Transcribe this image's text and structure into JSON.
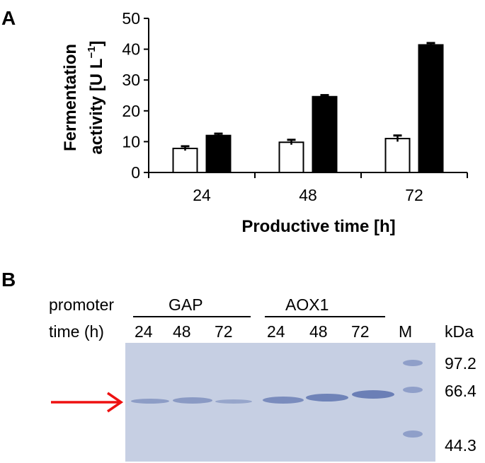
{
  "panel_a": {
    "label": "A"
  },
  "chart_data": {
    "type": "bar",
    "categories": [
      "24",
      "48",
      "72"
    ],
    "series": [
      {
        "fill": "#ffffff",
        "values": [
          7.8,
          9.8,
          11.0
        ],
        "errors": [
          0.7,
          0.8,
          1.0
        ]
      },
      {
        "fill": "#000000",
        "values": [
          12.0,
          24.6,
          41.4
        ],
        "errors": [
          0.6,
          0.5,
          0.6
        ]
      }
    ],
    "xlabel": "Productive time [h]",
    "ylabel_line1": "Fermentation",
    "ylabel_line2": "activity [U L",
    "ylabel_sup": "−1",
    "ylabel_end": "]",
    "ylim": [
      0,
      50
    ],
    "yticks": [
      "0",
      "10",
      "20",
      "30",
      "40",
      "50"
    ],
    "grid": false,
    "legend": "none"
  },
  "panel_b": {
    "label": "B",
    "promoter_label": "promoter",
    "time_label": "time (h)",
    "groups": [
      "GAP",
      "AOX1"
    ],
    "lanes": [
      "24",
      "48",
      "72",
      "24",
      "48",
      "72"
    ],
    "marker_lane": "M",
    "unit": "kDa",
    "marker_sizes": [
      "97.2",
      "66.4",
      "44.3"
    ],
    "arrow_color": "#ee1111",
    "gel_color": "#c6cfe3"
  }
}
